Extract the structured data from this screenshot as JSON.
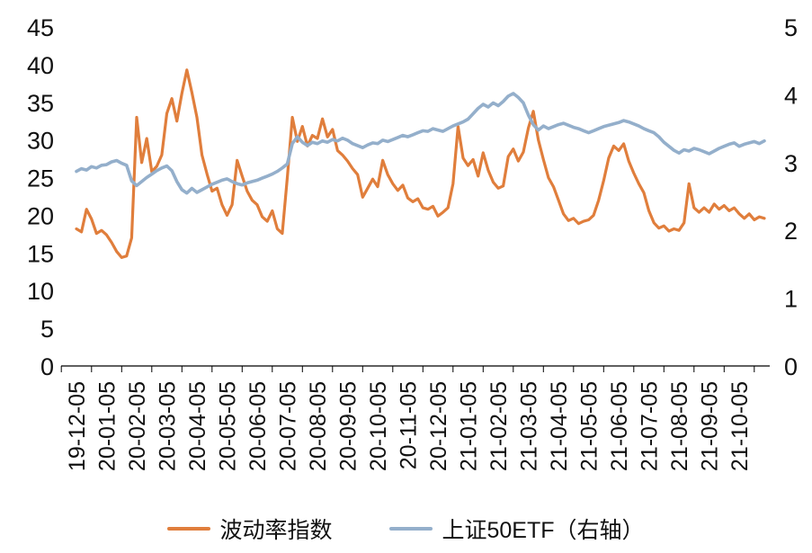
{
  "chart_data": {
    "type": "line",
    "title": "",
    "grid": false,
    "legend_position": "bottom",
    "points_per_tick": 6,
    "x_tick_labels": [
      "19-12-05",
      "20-01-05",
      "20-02-05",
      "20-03-05",
      "20-04-05",
      "20-05-05",
      "20-06-05",
      "20-07-05",
      "20-08-05",
      "20-09-05",
      "20-10-05",
      "20-11-05",
      "20-12-05",
      "21-01-05",
      "21-02-05",
      "21-03-05",
      "21-04-05",
      "21-05-05",
      "21-06-05",
      "21-07-05",
      "21-08-05",
      "21-09-05",
      "21-10-05"
    ],
    "left_axis": {
      "min": 0,
      "max": 45,
      "ticks": [
        45,
        40,
        35,
        30,
        25,
        20,
        15,
        10,
        5,
        0
      ]
    },
    "right_axis": {
      "min": 0,
      "max": 5,
      "ticks": [
        5,
        4,
        3,
        2,
        1,
        0
      ]
    },
    "series": [
      {
        "name": "波动率指数",
        "axis": "left",
        "color": "#E07E3C",
        "values": [
          18.2,
          17.8,
          20.8,
          19.5,
          17.6,
          18.0,
          17.4,
          16.4,
          15.2,
          14.4,
          14.6,
          17.0,
          33.0,
          27.0,
          30.2,
          25.8,
          26.5,
          28.0,
          33.5,
          35.5,
          32.5,
          36.2,
          39.3,
          36.3,
          33.0,
          28.0,
          25.5,
          23.2,
          23.6,
          21.4,
          20.0,
          21.4,
          27.3,
          25.2,
          23.2,
          22.0,
          21.4,
          19.8,
          19.2,
          20.6,
          18.2,
          17.6,
          25.0,
          33.0,
          29.8,
          31.8,
          29.2,
          30.6,
          30.2,
          32.8,
          30.4,
          31.4,
          28.6,
          28.0,
          27.2,
          26.2,
          25.4,
          22.4,
          23.6,
          24.8,
          23.8,
          27.3,
          25.4,
          24.2,
          23.3,
          24.0,
          22.3,
          21.8,
          22.2,
          21.0,
          20.8,
          21.2,
          19.9,
          20.4,
          21.0,
          24.2,
          31.8,
          27.6,
          26.6,
          27.4,
          25.2,
          28.3,
          26.0,
          24.4,
          23.6,
          23.9,
          27.8,
          28.8,
          27.2,
          28.4,
          31.6,
          33.8,
          30.0,
          27.4,
          25.0,
          23.8,
          22.0,
          20.2,
          19.3,
          19.6,
          18.9,
          19.2,
          19.4,
          20.0,
          22.0,
          24.6,
          27.6,
          29.2,
          28.6,
          29.5,
          27.2,
          25.6,
          24.2,
          23.0,
          20.6,
          19.0,
          18.3,
          18.6,
          17.9,
          18.2,
          18.0,
          19.0,
          24.2,
          21.0,
          20.4,
          21.0,
          20.4,
          21.5,
          20.8,
          21.3,
          20.6,
          21.0,
          20.2,
          19.6,
          20.2,
          19.4,
          19.8,
          19.6
        ]
      },
      {
        "name": "上证50ETF（右轴）",
        "axis": "right",
        "color": "#94AFCB",
        "values": [
          2.87,
          2.91,
          2.89,
          2.94,
          2.92,
          2.96,
          2.97,
          3.01,
          3.03,
          2.99,
          2.96,
          2.73,
          2.66,
          2.72,
          2.78,
          2.83,
          2.88,
          2.92,
          2.95,
          2.88,
          2.72,
          2.6,
          2.55,
          2.62,
          2.56,
          2.6,
          2.64,
          2.68,
          2.71,
          2.74,
          2.76,
          2.72,
          2.69,
          2.67,
          2.7,
          2.72,
          2.74,
          2.77,
          2.8,
          2.83,
          2.87,
          2.92,
          2.98,
          3.28,
          3.38,
          3.3,
          3.25,
          3.3,
          3.28,
          3.32,
          3.3,
          3.34,
          3.32,
          3.36,
          3.33,
          3.28,
          3.25,
          3.22,
          3.26,
          3.29,
          3.28,
          3.33,
          3.31,
          3.34,
          3.37,
          3.4,
          3.38,
          3.41,
          3.44,
          3.47,
          3.46,
          3.5,
          3.48,
          3.46,
          3.5,
          3.54,
          3.57,
          3.6,
          3.64,
          3.72,
          3.8,
          3.86,
          3.82,
          3.88,
          3.84,
          3.9,
          3.98,
          4.02,
          3.96,
          3.88,
          3.7,
          3.56,
          3.48,
          3.54,
          3.5,
          3.53,
          3.56,
          3.58,
          3.55,
          3.52,
          3.5,
          3.47,
          3.44,
          3.47,
          3.5,
          3.53,
          3.55,
          3.57,
          3.59,
          3.62,
          3.6,
          3.57,
          3.54,
          3.5,
          3.47,
          3.44,
          3.38,
          3.3,
          3.24,
          3.18,
          3.14,
          3.19,
          3.17,
          3.21,
          3.19,
          3.16,
          3.13,
          3.17,
          3.21,
          3.24,
          3.27,
          3.29,
          3.24,
          3.27,
          3.29,
          3.31,
          3.28,
          3.32
        ]
      }
    ]
  },
  "colors": {
    "volatility_line": "#E07E3C",
    "etf_line": "#94AFCB",
    "axis_text": "#111111",
    "background": "#FFFFFF"
  }
}
